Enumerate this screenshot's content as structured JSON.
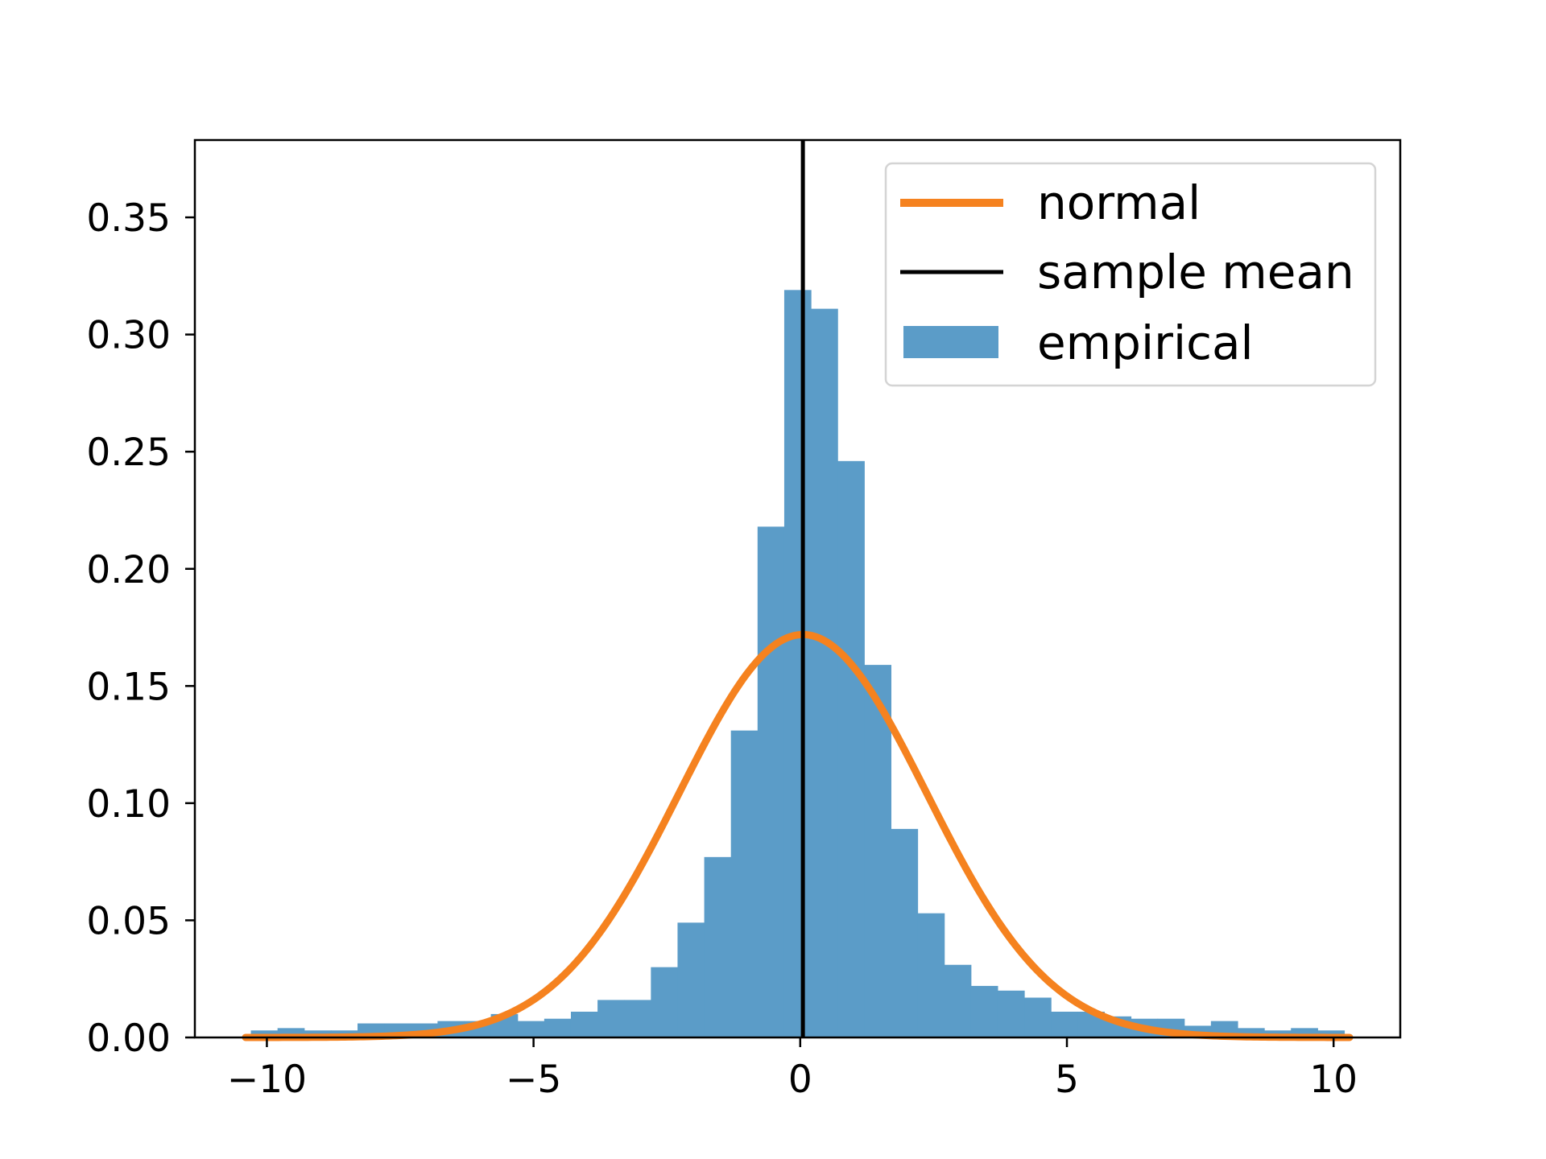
{
  "chart_data": {
    "type": "bar",
    "title": "",
    "xlabel": "",
    "ylabel": "",
    "xlim": [
      -11.35,
      11.25
    ],
    "ylim": [
      0,
      0.383
    ],
    "xticks": [
      -10,
      -5,
      0,
      5,
      10
    ],
    "xtick_labels": [
      "−10",
      "−5",
      "0",
      "5",
      "10"
    ],
    "yticks": [
      0,
      0.05,
      0.1,
      0.15,
      0.2,
      0.25,
      0.3,
      0.35
    ],
    "ytick_labels": [
      "0.00",
      "0.05",
      "0.10",
      "0.15",
      "0.20",
      "0.25",
      "0.30",
      "0.35"
    ],
    "grid": false,
    "legend_position": "top-right",
    "series": [
      {
        "name": "empirical",
        "kind": "histogram",
        "color": "#5b9cc8",
        "bin_width": 0.5,
        "bins": [
          {
            "start": -10.3,
            "value": 0.003
          },
          {
            "start": -9.8,
            "value": 0.004
          },
          {
            "start": -9.3,
            "value": 0.003
          },
          {
            "start": -8.8,
            "value": 0.003
          },
          {
            "start": -8.3,
            "value": 0.006
          },
          {
            "start": -7.8,
            "value": 0.006
          },
          {
            "start": -7.3,
            "value": 0.006
          },
          {
            "start": -6.8,
            "value": 0.007
          },
          {
            "start": -6.3,
            "value": 0.007
          },
          {
            "start": -5.8,
            "value": 0.01
          },
          {
            "start": -5.3,
            "value": 0.007
          },
          {
            "start": -4.8,
            "value": 0.008
          },
          {
            "start": -4.3,
            "value": 0.011
          },
          {
            "start": -3.8,
            "value": 0.016
          },
          {
            "start": -3.3,
            "value": 0.016
          },
          {
            "start": -2.8,
            "value": 0.03
          },
          {
            "start": -2.3,
            "value": 0.049
          },
          {
            "start": -1.8,
            "value": 0.077
          },
          {
            "start": -1.3,
            "value": 0.131
          },
          {
            "start": -0.8,
            "value": 0.218
          },
          {
            "start": -0.3,
            "value": 0.319
          },
          {
            "start": 0.2,
            "value": 0.311
          },
          {
            "start": 0.7,
            "value": 0.246
          },
          {
            "start": 1.2,
            "value": 0.159
          },
          {
            "start": 1.7,
            "value": 0.089
          },
          {
            "start": 2.2,
            "value": 0.053
          },
          {
            "start": 2.7,
            "value": 0.031
          },
          {
            "start": 3.2,
            "value": 0.022
          },
          {
            "start": 3.7,
            "value": 0.02
          },
          {
            "start": 4.2,
            "value": 0.017
          },
          {
            "start": 4.7,
            "value": 0.011
          },
          {
            "start": 5.2,
            "value": 0.011
          },
          {
            "start": 5.7,
            "value": 0.009
          },
          {
            "start": 6.2,
            "value": 0.008
          },
          {
            "start": 6.7,
            "value": 0.008
          },
          {
            "start": 7.2,
            "value": 0.005
          },
          {
            "start": 7.7,
            "value": 0.007
          },
          {
            "start": 8.2,
            "value": 0.004
          },
          {
            "start": 8.7,
            "value": 0.003
          },
          {
            "start": 9.2,
            "value": 0.004
          },
          {
            "start": 9.7,
            "value": 0.003
          }
        ]
      },
      {
        "name": "normal",
        "kind": "line",
        "color": "#f5821f",
        "mean": 0.05,
        "std": 2.32,
        "x_range": [
          -10.4,
          10.3
        ]
      },
      {
        "name": "sample mean",
        "kind": "vline",
        "color": "#000000",
        "x": 0.05
      }
    ],
    "legend": [
      "normal",
      "sample mean",
      "empirical"
    ]
  }
}
